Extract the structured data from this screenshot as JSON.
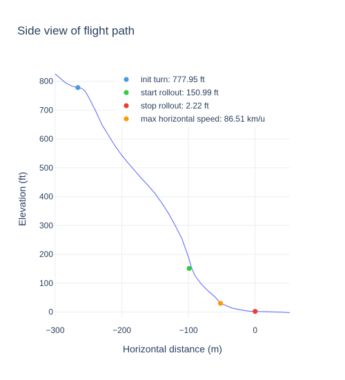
{
  "chart_data": {
    "type": "line",
    "title": "Side view of flight path",
    "xlabel": "Horizontal distance (m)",
    "ylabel": "Elevation (ft)",
    "xlim": [
      -300,
      52
    ],
    "ylim": [
      -20,
      830
    ],
    "xticks": [
      -300,
      -200,
      -100,
      0
    ],
    "xtick_labels": [
      "−300",
      "−200",
      "−100",
      "0"
    ],
    "yticks": [
      0,
      100,
      200,
      300,
      400,
      500,
      600,
      700,
      800
    ],
    "ytick_labels": [
      "0",
      "100",
      "200",
      "300",
      "400",
      "500",
      "600",
      "700",
      "800"
    ],
    "grid": true,
    "legend_position": "top-right",
    "path_color": "#636efa",
    "series": [
      {
        "x": [
          -300,
          -285,
          -275,
          -266,
          -260,
          -255,
          -250,
          -240,
          -230,
          -220,
          -210,
          -200,
          -190,
          -180,
          -170,
          -160,
          -150,
          -140,
          -130,
          -120,
          -110,
          -100,
          -95,
          -90,
          -80,
          -70,
          -60,
          -52,
          -45,
          -35,
          -25,
          -15,
          -8,
          0,
          10,
          20,
          30,
          40,
          52
        ],
        "y": [
          825,
          795,
          783,
          778,
          775,
          765,
          745,
          700,
          650,
          612,
          575,
          543,
          515,
          488,
          462,
          437,
          410,
          378,
          342,
          300,
          255,
          190,
          151,
          125,
          95,
          72,
          52,
          30,
          24,
          14,
          9,
          5,
          3,
          2.22,
          1.5,
          0.8,
          0.2,
          -0.3,
          -2
        ]
      }
    ],
    "markers": [
      {
        "label": "init turn: 777.95 ft",
        "x": -266,
        "y": 777.95,
        "color": "#4a9bdc"
      },
      {
        "label": "start rollout: 150.99 ft",
        "x": -99,
        "y": 150.99,
        "color": "#2ecc40"
      },
      {
        "label": "stop rollout: 2.22 ft",
        "x": 0,
        "y": 2.22,
        "color": "#ef3b32"
      },
      {
        "label": "max horizontal speed: 86.51 km/u",
        "x": -52,
        "y": 30,
        "color": "#ff9900"
      }
    ]
  }
}
